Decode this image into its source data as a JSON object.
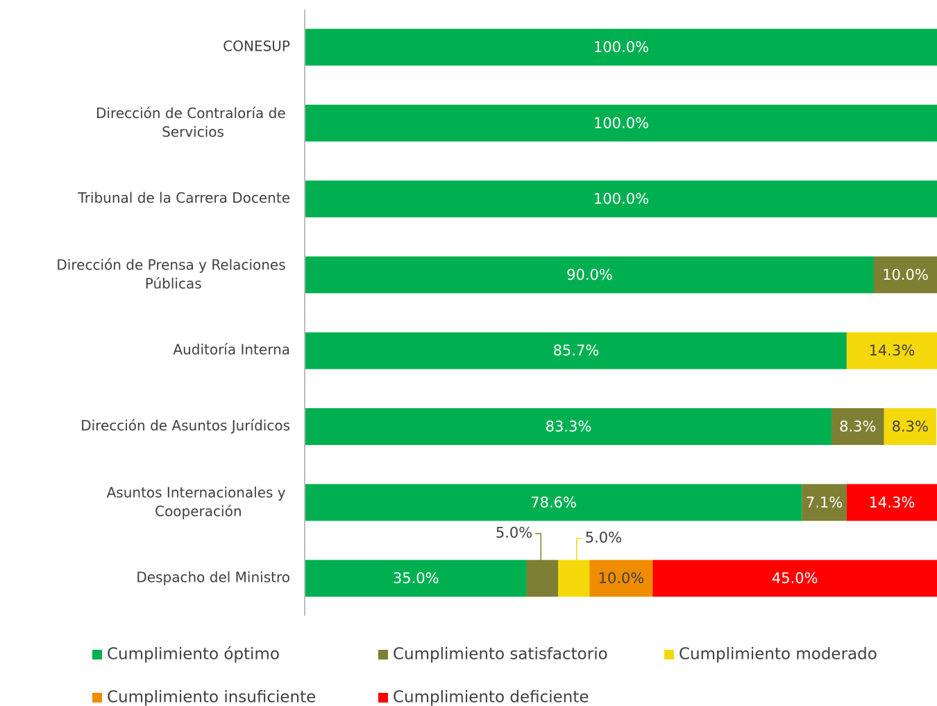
{
  "chart_data": {
    "type": "stacked_barh",
    "categories": [
      "CONESUP",
      "Dirección de Contraloría de Servicios",
      "Tribunal de la Carrera Docente",
      "Dirección de Prensa y Relaciones Públicas",
      "Auditoría Interna",
      "Dirección de Asuntos Jurídicos",
      "Asuntos Internacionales y Cooperación",
      "Despacho del Ministro"
    ],
    "xlim": [
      0,
      100
    ],
    "legend": "bottom",
    "series": [
      {
        "name": "Cumplimiento óptimo",
        "color": "#00b050",
        "values": [
          100,
          100,
          100,
          90,
          85.7,
          83.3,
          78.6,
          35
        ],
        "value_labels": [
          "100.0%",
          "100.0%",
          "100.0%",
          "90.0%",
          "85.7%",
          "83.3%",
          "78.6%",
          "35.0%"
        ]
      },
      {
        "name": "Cumplimiento satisfactorio",
        "color": "#7f7f33",
        "values": [
          null,
          null,
          null,
          10,
          null,
          8.3,
          7.1,
          5
        ],
        "value_labels": [
          null,
          null,
          null,
          "10.0%",
          null,
          "8.3%",
          "7.1%",
          "5.0%"
        ]
      },
      {
        "name": "Cumplimiento moderado",
        "color": "#f5d80c",
        "values": [
          null,
          null,
          null,
          null,
          14.3,
          8.3,
          null,
          5
        ],
        "value_labels": [
          null,
          null,
          null,
          null,
          "14.3%",
          "8.3%",
          null,
          "5.0%"
        ]
      },
      {
        "name": "Cumplimiento insuficiente",
        "color": "#f08c00",
        "values": [
          null,
          null,
          null,
          null,
          null,
          null,
          null,
          10
        ],
        "value_labels": [
          null,
          null,
          null,
          null,
          null,
          null,
          null,
          "10.0%"
        ]
      },
      {
        "name": "Cumplimiento deficiente",
        "color": "#ff0000",
        "values": [
          null,
          null,
          null,
          null,
          null,
          null,
          14.3,
          45
        ],
        "value_labels": [
          null,
          null,
          null,
          null,
          null,
          null,
          "14.3%",
          "45.0%"
        ]
      }
    ]
  }
}
